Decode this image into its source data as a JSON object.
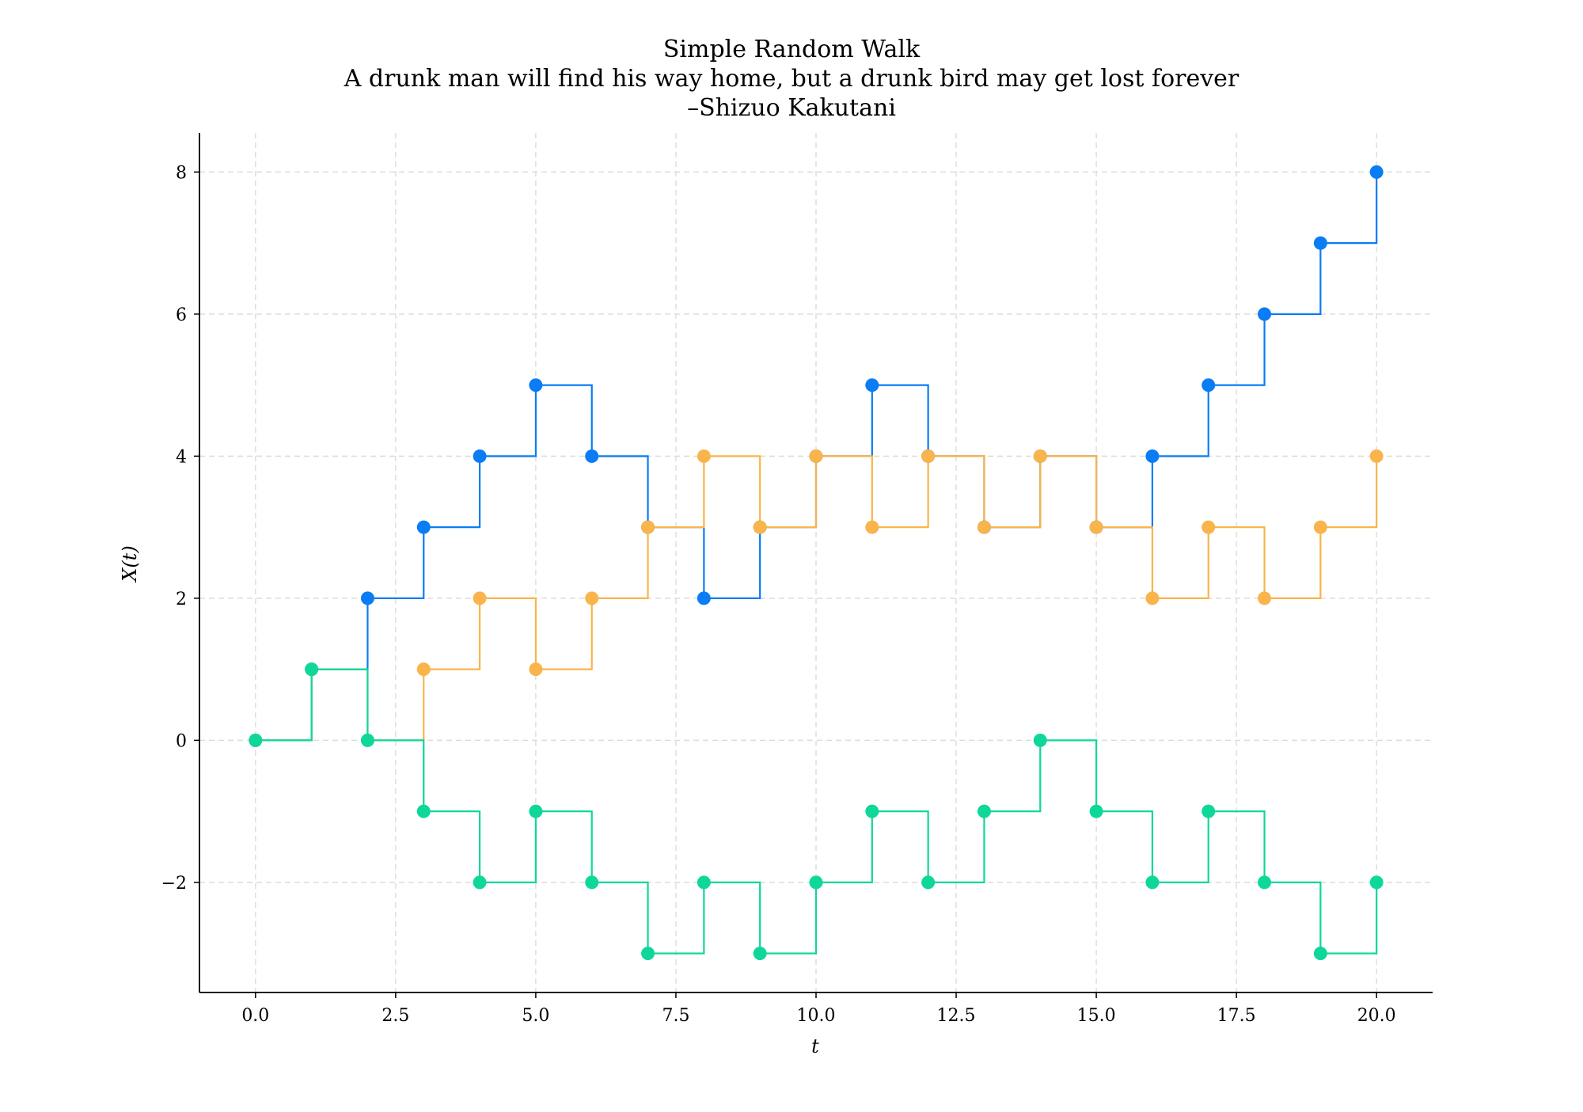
{
  "chart_data": {
    "type": "line",
    "step": "post",
    "title_lines": [
      "Simple Random Walk",
      "A drunk man will find his way home, but a drunk bird may get lost forever",
      "–Shizuo Kakutani"
    ],
    "xlabel": "t",
    "ylabel": "X(t)",
    "xlim": [
      -1,
      21
    ],
    "ylim": [
      -3.55,
      8.55
    ],
    "x_ticks": [
      0,
      2.5,
      5,
      7.5,
      10,
      12.5,
      15,
      17.5,
      20
    ],
    "x_tick_labels": [
      "0.0",
      "2.5",
      "5.0",
      "7.5",
      "10.0",
      "12.5",
      "15.0",
      "17.5",
      "20.0"
    ],
    "y_ticks": [
      -2,
      0,
      2,
      4,
      6,
      8
    ],
    "y_tick_labels": [
      "−2",
      "0",
      "2",
      "4",
      "6",
      "8"
    ],
    "grid": true,
    "x": [
      0,
      1,
      2,
      3,
      4,
      5,
      6,
      7,
      8,
      9,
      10,
      11,
      12,
      13,
      14,
      15,
      16,
      17,
      18,
      19,
      20
    ],
    "series": [
      {
        "color": "#0a7cf4",
        "values": [
          0,
          1,
          2,
          3,
          4,
          5,
          4,
          3,
          2,
          3,
          4,
          5,
          4,
          3,
          4,
          3,
          4,
          5,
          6,
          7,
          8
        ]
      },
      {
        "color": "#f9b44b",
        "values": [
          0,
          1,
          0,
          1,
          2,
          1,
          2,
          3,
          4,
          3,
          4,
          3,
          4,
          3,
          4,
          3,
          2,
          3,
          2,
          3,
          4
        ]
      },
      {
        "color": "#0fd79a",
        "values": [
          0,
          1,
          0,
          -1,
          -2,
          -1,
          -2,
          -3,
          -2,
          -3,
          -2,
          -1,
          -2,
          -1,
          0,
          -1,
          -2,
          -1,
          -2,
          -3,
          -2
        ]
      }
    ]
  }
}
